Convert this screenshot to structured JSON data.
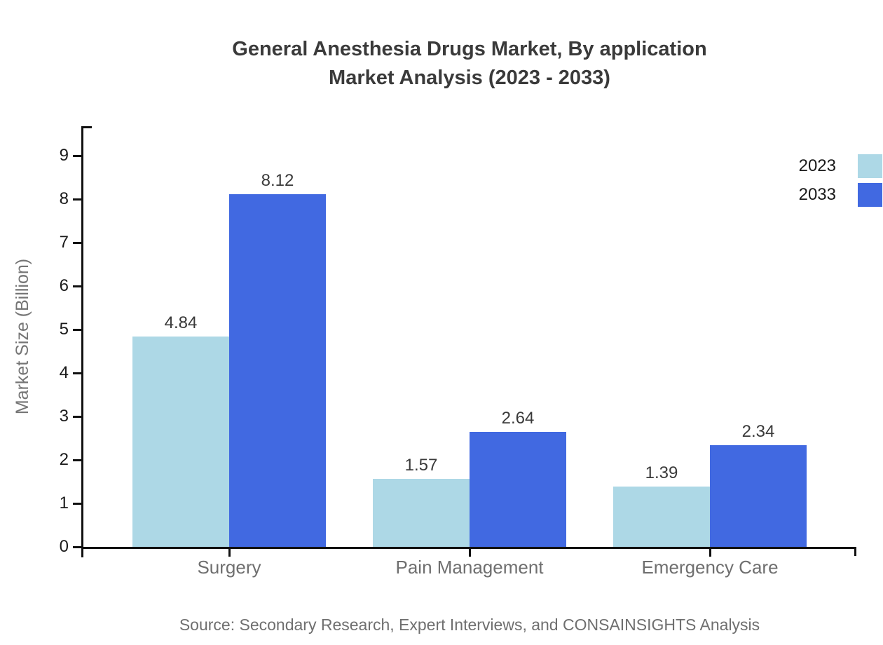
{
  "chart_data": {
    "type": "bar",
    "title": "General Anesthesia Drugs Market, By application",
    "subtitle": "Market Analysis (2023 - 2033)",
    "ylabel": "Market Size (Billion)",
    "xlabel": "",
    "categories": [
      "Surgery",
      "Pain Management",
      "Emergency Care"
    ],
    "series": [
      {
        "name": "2023",
        "color": "#ADD8E6",
        "values": [
          4.84,
          1.57,
          1.39
        ]
      },
      {
        "name": "2033",
        "color": "#4169E1",
        "values": [
          8.12,
          2.64,
          2.34
        ]
      }
    ],
    "ylim": [
      0,
      10
    ],
    "yticks": [
      0,
      1,
      2,
      3,
      4,
      5,
      6,
      7,
      8,
      9
    ],
    "grid": false,
    "legend_position": "top-right",
    "value_labels_shown": true,
    "source": "Source: Secondary Research, Expert Interviews, and CONSAINSIGHTS Analysis",
    "colors": {
      "axis": "#111111",
      "title_text": "#3a3a3a",
      "tick_text": "#1a1a1a",
      "muted_text": "#6f6f6f"
    }
  }
}
